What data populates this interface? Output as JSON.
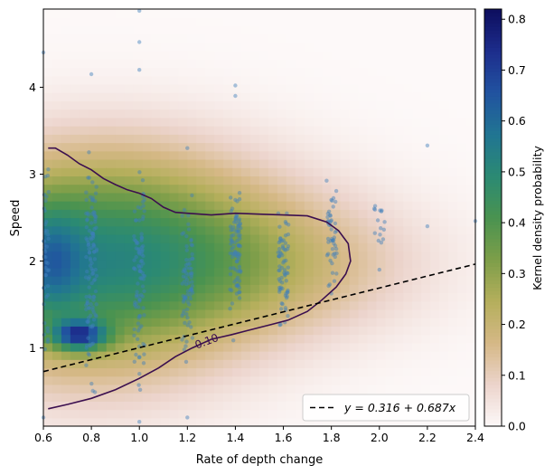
{
  "chart_data": {
    "type": "heatmap",
    "xlabel": "Rate of depth change",
    "ylabel": "Speed",
    "xlim": [
      0.6,
      2.4
    ],
    "ylim": [
      0.1,
      4.9
    ],
    "xticks": [
      "0.6",
      "0.8",
      "1.0",
      "1.2",
      "1.4",
      "1.6",
      "1.8",
      "2.0",
      "2.2",
      "2.4"
    ],
    "yticks": [
      "1",
      "2",
      "3",
      "4"
    ],
    "colorbar": {
      "label": "Kernel density probability",
      "ticks": [
        "0.0",
        "0.1",
        "0.2",
        "0.3",
        "0.4",
        "0.5",
        "0.6",
        "0.7",
        "0.8"
      ],
      "range": [
        0,
        0.82
      ],
      "colormap": [
        "#fdf9f9",
        "#ecd4cc",
        "#d5b886",
        "#b5af5c",
        "#7d9e49",
        "#4a9350",
        "#2b8a73",
        "#217592",
        "#2153a0",
        "#1d2d8c",
        "#0d0e5e"
      ]
    },
    "density_blobs": [
      {
        "cx": 0.8,
        "cy": 1.9,
        "sx": 0.45,
        "sy": 0.85,
        "amp": 0.42
      },
      {
        "cx": 0.75,
        "cy": 1.15,
        "sx": 0.08,
        "sy": 0.12,
        "amp": 0.45
      },
      {
        "cx": 0.62,
        "cy": 2.0,
        "sx": 0.1,
        "sy": 0.45,
        "amp": 0.2
      },
      {
        "cx": 1.5,
        "cy": 1.95,
        "sx": 0.45,
        "sy": 0.55,
        "amp": 0.17
      },
      {
        "cx": 1.0,
        "cy": 2.7,
        "sx": 0.5,
        "sy": 0.6,
        "amp": 0.08
      }
    ],
    "scatter_columns": [
      {
        "x": 0.6,
        "ymin": 0.5,
        "ymax": 3.3,
        "count": 80
      },
      {
        "x": 0.8,
        "ymin": 0.3,
        "ymax": 3.5,
        "count": 120
      },
      {
        "x": 1.0,
        "ymin": 0.3,
        "ymax": 3.4,
        "count": 100
      },
      {
        "x": 1.2,
        "ymin": 0.6,
        "ymax": 3.0,
        "count": 80
      },
      {
        "x": 1.4,
        "ymin": 0.9,
        "ymax": 3.2,
        "count": 90
      },
      {
        "x": 1.6,
        "ymin": 1.0,
        "ymax": 2.9,
        "count": 70
      },
      {
        "x": 1.8,
        "ymin": 1.4,
        "ymax": 3.2,
        "count": 50
      },
      {
        "x": 2.0,
        "ymin": 1.9,
        "ymax": 2.8,
        "count": 15
      }
    ],
    "scatter_outliers": [
      [
        0.6,
        4.4
      ],
      [
        0.8,
        4.15
      ],
      [
        1.0,
        4.52
      ],
      [
        1.0,
        4.2
      ],
      [
        1.0,
        4.88
      ],
      [
        1.4,
        4.02
      ],
      [
        1.4,
        3.9
      ],
      [
        1.2,
        3.3
      ],
      [
        2.2,
        3.33
      ],
      [
        2.2,
        2.4
      ],
      [
        2.4,
        2.46
      ],
      [
        2.0,
        1.9
      ],
      [
        1.2,
        0.2
      ],
      [
        0.6,
        0.2
      ],
      [
        1.0,
        0.15
      ]
    ],
    "contour": {
      "level": 0.1,
      "label": "0.10",
      "points": [
        [
          0.62,
          3.3
        ],
        [
          0.65,
          3.3
        ],
        [
          0.7,
          3.22
        ],
        [
          0.75,
          3.12
        ],
        [
          0.8,
          3.05
        ],
        [
          0.85,
          2.95
        ],
        [
          0.9,
          2.88
        ],
        [
          0.95,
          2.82
        ],
        [
          1.0,
          2.78
        ],
        [
          1.05,
          2.72
        ],
        [
          1.1,
          2.62
        ],
        [
          1.15,
          2.56
        ],
        [
          1.2,
          2.55
        ],
        [
          1.3,
          2.53
        ],
        [
          1.4,
          2.55
        ],
        [
          1.5,
          2.54
        ],
        [
          1.6,
          2.53
        ],
        [
          1.7,
          2.52
        ],
        [
          1.78,
          2.45
        ],
        [
          1.83,
          2.35
        ],
        [
          1.87,
          2.2
        ],
        [
          1.88,
          2.0
        ],
        [
          1.86,
          1.85
        ],
        [
          1.82,
          1.7
        ],
        [
          1.76,
          1.55
        ],
        [
          1.7,
          1.42
        ],
        [
          1.62,
          1.32
        ],
        [
          1.55,
          1.27
        ],
        [
          1.45,
          1.2
        ],
        [
          1.38,
          1.15
        ],
        [
          1.3,
          1.1
        ],
        [
          1.22,
          1.0
        ],
        [
          1.15,
          0.9
        ],
        [
          1.08,
          0.77
        ],
        [
          1.0,
          0.65
        ],
        [
          0.9,
          0.52
        ],
        [
          0.8,
          0.42
        ],
        [
          0.7,
          0.35
        ],
        [
          0.62,
          0.3
        ]
      ]
    },
    "fit_line": {
      "intercept": 0.316,
      "slope": 0.687,
      "legend": "y = 0.316 + 0.687x"
    }
  }
}
